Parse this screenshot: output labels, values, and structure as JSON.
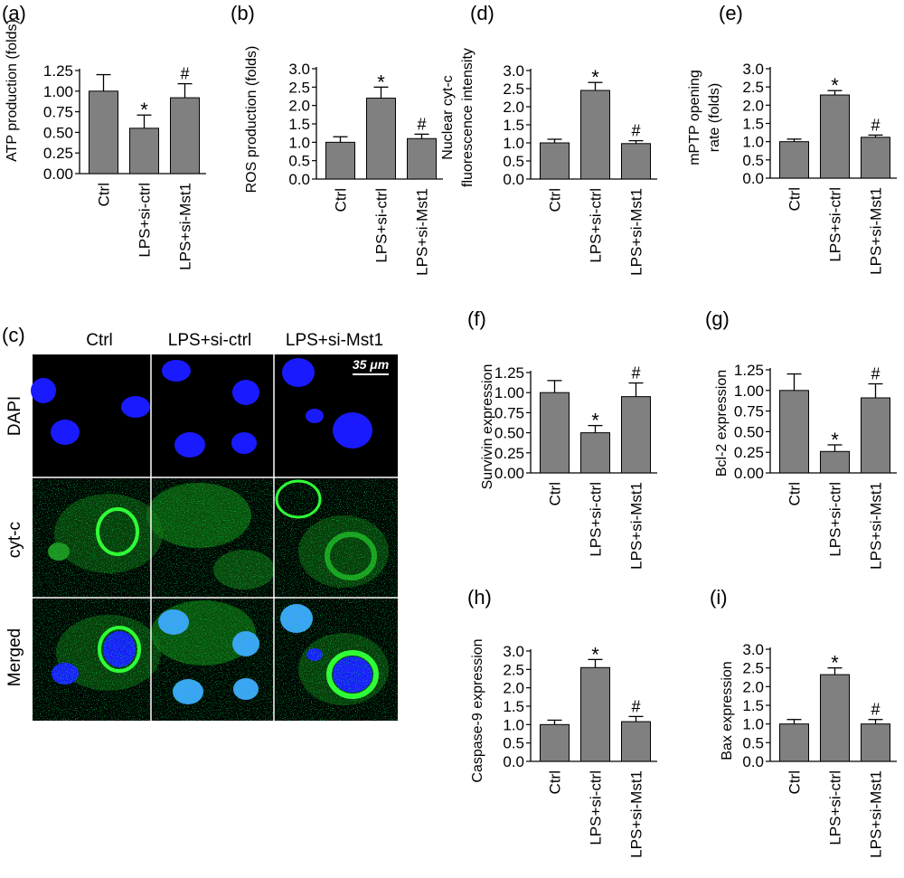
{
  "chart_data": [
    {
      "panel": "(a)",
      "type": "bar",
      "categories": [
        "Ctrl",
        "LPS+si-ctrl",
        "LPS+si-Mst1"
      ],
      "values": [
        1.0,
        0.55,
        0.92
      ],
      "errors": [
        0.2,
        0.16,
        0.17
      ],
      "markers": [
        "",
        "*",
        "#"
      ],
      "ylabel": [
        "ATP production (folds)"
      ],
      "ylim": [
        0,
        1.25
      ],
      "yticks": [
        "0.00",
        "0.25",
        "0.50",
        "0.75",
        "1.00",
        "1.25"
      ]
    },
    {
      "panel": "(b)",
      "type": "bar",
      "categories": [
        "Ctrl",
        "LPS+si-ctrl",
        "LPS+si-Mst1"
      ],
      "values": [
        1.0,
        2.2,
        1.1
      ],
      "errors": [
        0.15,
        0.3,
        0.12
      ],
      "markers": [
        "",
        "*",
        "#"
      ],
      "ylabel": [
        "ROS production (folds)"
      ],
      "ylim": [
        0,
        3.0
      ],
      "yticks": [
        "0.0",
        "0.5",
        "1.0",
        "1.5",
        "2.0",
        "2.5",
        "3.0"
      ]
    },
    {
      "panel": "(d)",
      "type": "bar",
      "categories": [
        "Ctrl",
        "LPS+si-ctrl",
        "LPS+si-Mst1"
      ],
      "values": [
        1.0,
        2.45,
        0.98
      ],
      "errors": [
        0.1,
        0.22,
        0.08
      ],
      "markers": [
        "",
        "*",
        "#"
      ],
      "ylabel": [
        "Nuclear cyt-c",
        "fluorescence intensity"
      ],
      "ylim": [
        0,
        3.0
      ],
      "yticks": [
        "0.0",
        "0.5",
        "1.0",
        "1.5",
        "2.0",
        "2.5",
        "3.0"
      ]
    },
    {
      "panel": "(e)",
      "type": "bar",
      "categories": [
        "Ctrl",
        "LPS+si-ctrl",
        "LPS+si-Mst1"
      ],
      "values": [
        1.0,
        2.28,
        1.12
      ],
      "errors": [
        0.07,
        0.12,
        0.06
      ],
      "markers": [
        "",
        "*",
        "#"
      ],
      "ylabel": [
        "mPTP opening",
        "rate (folds)"
      ],
      "ylim": [
        0,
        3.0
      ],
      "yticks": [
        "0.0",
        "0.5",
        "1.0",
        "1.5",
        "2.0",
        "2.5",
        "3.0"
      ]
    },
    {
      "panel": "(f)",
      "type": "bar",
      "categories": [
        "Ctrl",
        "LPS+si-ctrl",
        "LPS+si-Mst1"
      ],
      "values": [
        1.0,
        0.5,
        0.95
      ],
      "errors": [
        0.15,
        0.09,
        0.17
      ],
      "markers": [
        "",
        "*",
        "#"
      ],
      "ylabel": [
        "Survivin expression"
      ],
      "ylim": [
        0,
        1.25
      ],
      "yticks": [
        "0.00",
        "0.25",
        "0.50",
        "0.75",
        "1.00",
        "1.25"
      ]
    },
    {
      "panel": "(g)",
      "type": "bar",
      "categories": [
        "Ctrl",
        "LPS+si-ctrl",
        "LPS+si-Mst1"
      ],
      "values": [
        1.0,
        0.26,
        0.91
      ],
      "errors": [
        0.2,
        0.08,
        0.17
      ],
      "markers": [
        "",
        "*",
        "#"
      ],
      "ylabel": [
        "Bcl-2 expression"
      ],
      "ylim": [
        0,
        1.25
      ],
      "yticks": [
        "0.00",
        "0.25",
        "0.50",
        "0.75",
        "1.00",
        "1.25"
      ]
    },
    {
      "panel": "(h)",
      "type": "bar",
      "categories": [
        "Ctrl",
        "LPS+si-ctrl",
        "LPS+si-Mst1"
      ],
      "values": [
        1.0,
        2.55,
        1.08
      ],
      "errors": [
        0.12,
        0.22,
        0.14
      ],
      "markers": [
        "",
        "*",
        "#"
      ],
      "ylabel": [
        "Caspase-9 expression"
      ],
      "ylim": [
        0,
        3.0
      ],
      "yticks": [
        "0.0",
        "0.5",
        "1.0",
        "1.5",
        "2.0",
        "2.5",
        "3.0"
      ]
    },
    {
      "panel": "(i)",
      "type": "bar",
      "categories": [
        "Ctrl",
        "LPS+si-ctrl",
        "LPS+si-Mst1"
      ],
      "values": [
        1.0,
        2.32,
        1.0
      ],
      "errors": [
        0.12,
        0.18,
        0.12
      ],
      "markers": [
        "",
        "*",
        "#"
      ],
      "ylabel": [
        "Bax expression"
      ],
      "ylim": [
        0,
        3.0
      ],
      "yticks": [
        "0.0",
        "0.5",
        "1.0",
        "1.5",
        "2.0",
        "2.5",
        "3.0"
      ]
    }
  ],
  "micrograph": {
    "panel": "(c)",
    "columns": [
      "Ctrl",
      "LPS+si-ctrl",
      "LPS+si-Mst1"
    ],
    "rows": [
      "DAPI",
      "cyt-c",
      "Merged"
    ],
    "scale_bar": "35 μm",
    "colors": {
      "nucleus": "#1a1aff",
      "cytc": "#22cc22",
      "merged_nucleus": "#3fa0ff",
      "background": "#000000"
    }
  },
  "colors": {
    "bar": "#808080",
    "axis": "#000000"
  }
}
